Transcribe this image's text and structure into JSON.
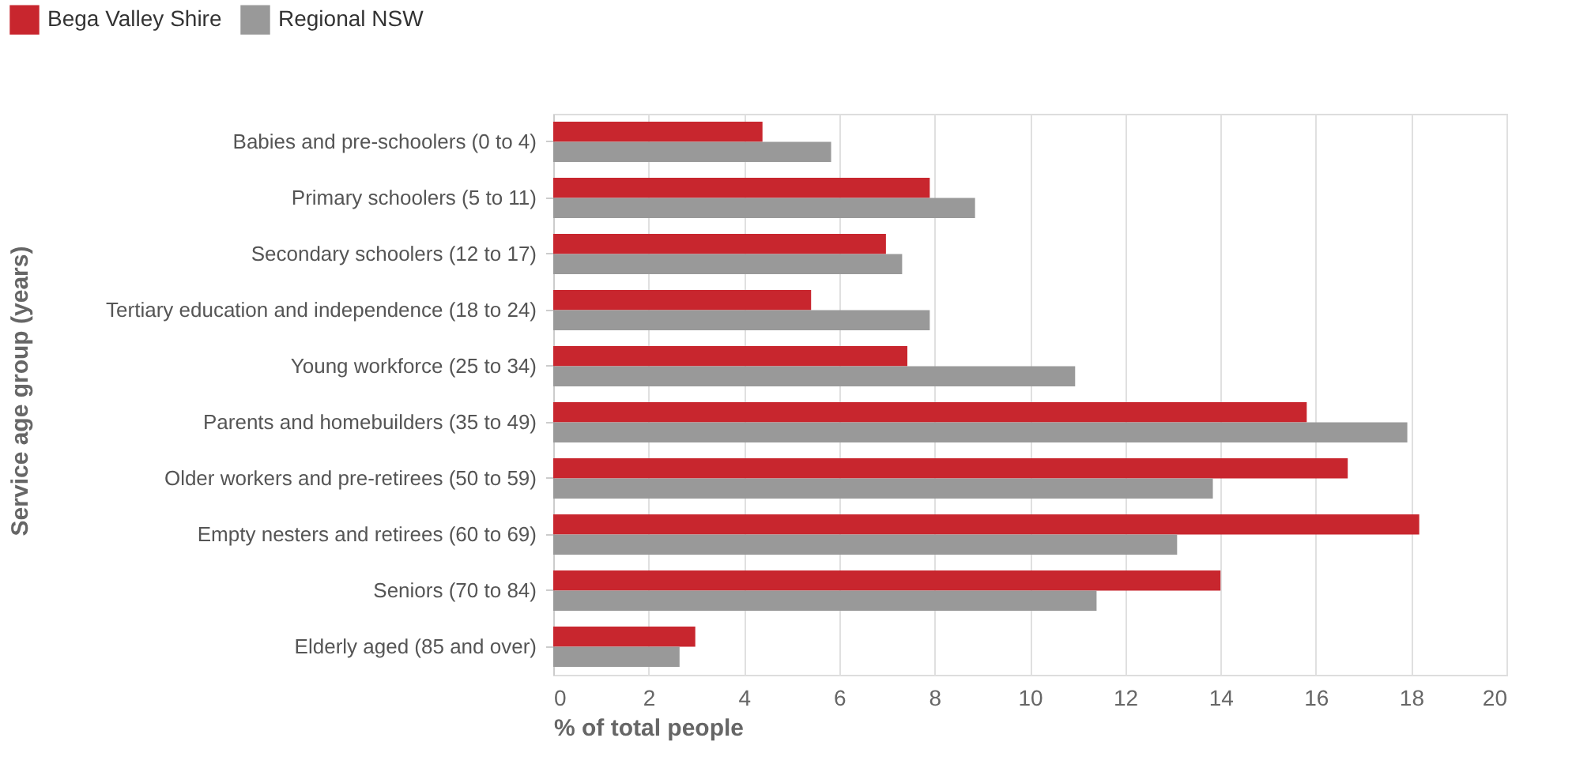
{
  "chart_data": {
    "type": "bar",
    "orientation": "horizontal",
    "xlabel": "% of total people",
    "ylabel": "Service age group (years)",
    "categories": [
      "Babies and pre-schoolers (0 to 4)",
      "Primary schoolers (5 to 11)",
      "Secondary schoolers (12 to 17)",
      "Tertiary education and independence (18 to 24)",
      "Young workforce (25 to 34)",
      "Parents and homebuilders (35 to 49)",
      "Older workers and pre-retirees (50 to 59)",
      "Empty nesters and retirees (60 to 69)",
      "Seniors (70 to 84)",
      "Elderly aged (85 and over)"
    ],
    "series": [
      {
        "name": "Bega Valley Shire",
        "color": "#c8262e",
        "values": [
          4.39,
          7.9,
          6.98,
          5.41,
          7.43,
          15.81,
          16.67,
          18.17,
          14.0,
          2.98
        ]
      },
      {
        "name": "Regional NSW",
        "color": "#999999",
        "values": [
          5.83,
          8.85,
          7.32,
          7.9,
          10.95,
          17.92,
          13.84,
          13.09,
          11.4,
          2.65
        ]
      }
    ],
    "xlim": [
      0,
      20
    ],
    "xticks": [
      0,
      2,
      4,
      6,
      8,
      10,
      12,
      14,
      16,
      18,
      20
    ],
    "grid": "x",
    "legend": "top left"
  }
}
